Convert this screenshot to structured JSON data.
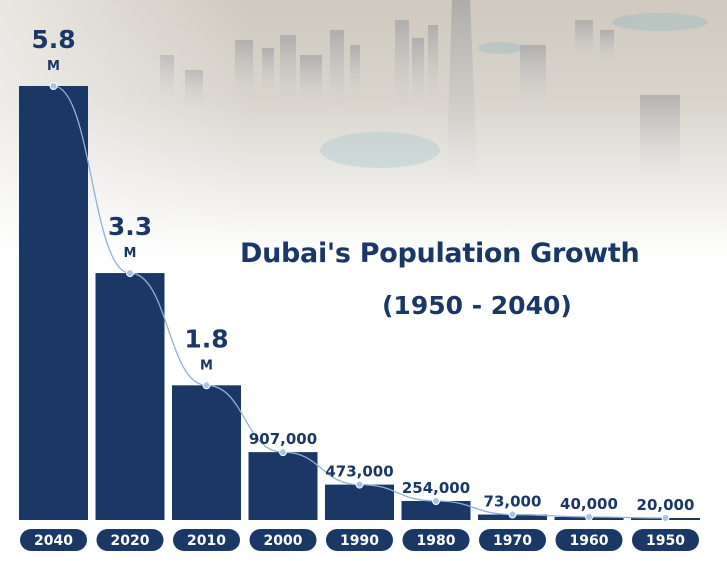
{
  "title": "Dubai's Population Growth",
  "subtitle": "(1950 - 2040)",
  "colors": {
    "bar": "#1b3766",
    "trend_line": "#8fb0d8",
    "dot": "#a9c3e3",
    "label": "#1b3766",
    "year_text": "#ffffff"
  },
  "chart_data": {
    "type": "bar",
    "categories": [
      "2040",
      "2020",
      "2010",
      "2000",
      "1990",
      "1980",
      "1970",
      "1960",
      "1950"
    ],
    "values": [
      5800000,
      3300000,
      1800000,
      907000,
      473000,
      254000,
      73000,
      40000,
      20000
    ],
    "value_labels": [
      {
        "main": "5.8",
        "unit": "M"
      },
      {
        "main": "3.3",
        "unit": "M"
      },
      {
        "main": "1.8",
        "unit": "M"
      },
      {
        "main": "907,000",
        "unit": ""
      },
      {
        "main": "473,000",
        "unit": ""
      },
      {
        "main": "254,000",
        "unit": ""
      },
      {
        "main": "73,000",
        "unit": ""
      },
      {
        "main": "40,000",
        "unit": ""
      },
      {
        "main": "20,000",
        "unit": ""
      }
    ],
    "title": "Dubai's Population Growth",
    "subtitle": "(1950 - 2040)",
    "xlabel": "",
    "ylabel": "",
    "ylim": [
      0,
      5800000
    ],
    "trend_line": true,
    "grid": false,
    "legend": "none"
  }
}
